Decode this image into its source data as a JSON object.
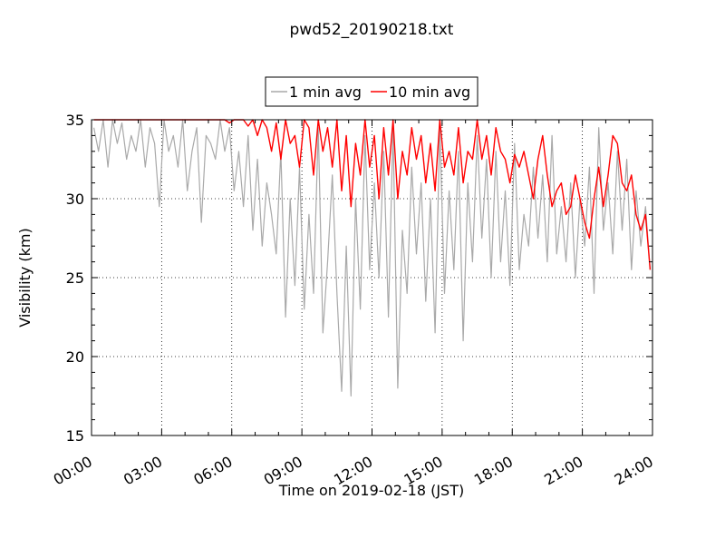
{
  "chart_data": {
    "type": "line",
    "title": "pwd52_20190218.txt",
    "xlabel": "Time on 2019-02-18 (JST)",
    "ylabel": "Visibility (km)",
    "xlim_hours": [
      0,
      24
    ],
    "ylim": [
      15,
      35
    ],
    "x_ticks": [
      "00:00",
      "03:00",
      "06:00",
      "09:00",
      "12:00",
      "15:00",
      "18:00",
      "21:00",
      "24:00"
    ],
    "y_ticks": [
      15,
      20,
      25,
      30,
      35
    ],
    "grid": true,
    "legend_position": "top-center",
    "series": [
      {
        "name": "1 min avg",
        "color": "#a9a9a9",
        "x_hours": [
          0.1,
          0.3,
          0.5,
          0.7,
          0.9,
          1.1,
          1.3,
          1.5,
          1.7,
          1.9,
          2.1,
          2.3,
          2.5,
          2.7,
          2.9,
          3.1,
          3.3,
          3.5,
          3.7,
          3.9,
          4.1,
          4.3,
          4.5,
          4.7,
          4.9,
          5.1,
          5.3,
          5.5,
          5.7,
          5.9,
          6.1,
          6.3,
          6.5,
          6.7,
          6.9,
          7.1,
          7.3,
          7.5,
          7.7,
          7.9,
          8.1,
          8.3,
          8.5,
          8.7,
          8.9,
          9.1,
          9.3,
          9.5,
          9.7,
          9.9,
          10.1,
          10.3,
          10.5,
          10.7,
          10.9,
          11.1,
          11.3,
          11.5,
          11.7,
          11.9,
          12.1,
          12.3,
          12.5,
          12.7,
          12.9,
          13.1,
          13.3,
          13.5,
          13.7,
          13.9,
          14.1,
          14.3,
          14.5,
          14.7,
          14.9,
          15.1,
          15.3,
          15.5,
          15.7,
          15.9,
          16.1,
          16.3,
          16.5,
          16.7,
          16.9,
          17.1,
          17.3,
          17.5,
          17.7,
          17.9,
          18.1,
          18.3,
          18.5,
          18.7,
          18.9,
          19.1,
          19.3,
          19.5,
          19.7,
          19.9,
          20.1,
          20.3,
          20.5,
          20.7,
          20.9,
          21.1,
          21.3,
          21.5,
          21.7,
          21.9,
          22.1,
          22.3,
          22.5,
          22.7,
          22.9,
          23.1,
          23.3,
          23.5,
          23.7,
          23.9
        ],
        "values": [
          34.5,
          33.0,
          35.0,
          32.0,
          35.0,
          33.5,
          34.8,
          32.5,
          34.0,
          33.0,
          35.0,
          32.0,
          34.5,
          33.5,
          29.5,
          35.0,
          33.0,
          34.0,
          32.0,
          35.0,
          30.5,
          33.0,
          34.5,
          28.5,
          34.0,
          33.5,
          32.5,
          35.0,
          33.0,
          34.5,
          30.5,
          33.0,
          29.5,
          34.0,
          28.0,
          32.5,
          27.0,
          31.0,
          29.0,
          26.5,
          33.0,
          22.5,
          30.0,
          24.5,
          32.0,
          23.0,
          29.0,
          24.0,
          34.5,
          21.5,
          26.0,
          31.5,
          24.0,
          17.8,
          27.0,
          17.5,
          30.0,
          23.0,
          34.0,
          25.5,
          31.0,
          25.0,
          33.0,
          22.5,
          34.5,
          18.0,
          28.0,
          24.0,
          32.0,
          26.5,
          31.0,
          23.5,
          30.0,
          21.5,
          34.5,
          24.0,
          30.5,
          25.5,
          33.0,
          21.0,
          31.0,
          26.0,
          34.0,
          27.5,
          32.5,
          25.0,
          33.0,
          26.0,
          30.5,
          24.5,
          33.5,
          25.5,
          29.0,
          27.0,
          32.0,
          27.5,
          31.5,
          26.0,
          34.0,
          26.5,
          29.5,
          26.0,
          31.0,
          25.0,
          30.0,
          27.0,
          32.0,
          24.0,
          34.5,
          28.0,
          31.0,
          26.5,
          33.0,
          28.0,
          32.5,
          25.5,
          30.5,
          27.0,
          29.5,
          25.5
        ]
      },
      {
        "name": "10 min avg",
        "color": "#ff0000",
        "x_hours": [
          0.1,
          0.3,
          0.5,
          0.7,
          0.9,
          1.1,
          1.3,
          1.5,
          1.7,
          1.9,
          2.1,
          2.3,
          2.5,
          2.7,
          2.9,
          3.1,
          3.3,
          3.5,
          3.7,
          3.9,
          4.1,
          4.3,
          4.5,
          4.7,
          4.9,
          5.1,
          5.3,
          5.5,
          5.7,
          5.9,
          6.1,
          6.3,
          6.5,
          6.7,
          6.9,
          7.1,
          7.3,
          7.5,
          7.7,
          7.9,
          8.1,
          8.3,
          8.5,
          8.7,
          8.9,
          9.1,
          9.3,
          9.5,
          9.7,
          9.9,
          10.1,
          10.3,
          10.5,
          10.7,
          10.9,
          11.1,
          11.3,
          11.5,
          11.7,
          11.9,
          12.1,
          12.3,
          12.5,
          12.7,
          12.9,
          13.1,
          13.3,
          13.5,
          13.7,
          13.9,
          14.1,
          14.3,
          14.5,
          14.7,
          14.9,
          15.1,
          15.3,
          15.5,
          15.7,
          15.9,
          16.1,
          16.3,
          16.5,
          16.7,
          16.9,
          17.1,
          17.3,
          17.5,
          17.7,
          17.9,
          18.1,
          18.3,
          18.5,
          18.7,
          18.9,
          19.1,
          19.3,
          19.5,
          19.7,
          19.9,
          20.1,
          20.3,
          20.5,
          20.7,
          20.9,
          21.1,
          21.3,
          21.5,
          21.7,
          21.9,
          22.1,
          22.3,
          22.5,
          22.7,
          22.9,
          23.1,
          23.3,
          23.5,
          23.7,
          23.9
        ],
        "values": [
          35.0,
          35.0,
          35.0,
          35.0,
          35.0,
          35.0,
          35.0,
          35.0,
          35.0,
          35.0,
          35.0,
          35.0,
          35.0,
          35.0,
          35.0,
          35.0,
          35.0,
          35.0,
          35.0,
          35.0,
          35.0,
          35.0,
          35.0,
          35.0,
          35.0,
          35.0,
          35.0,
          35.0,
          35.0,
          34.8,
          35.0,
          35.0,
          35.0,
          34.6,
          35.0,
          34.0,
          35.0,
          34.5,
          33.0,
          34.8,
          32.5,
          35.0,
          33.5,
          34.0,
          32.0,
          35.0,
          34.5,
          31.5,
          35.0,
          33.0,
          34.5,
          32.0,
          35.0,
          30.5,
          34.0,
          29.5,
          33.5,
          31.5,
          35.0,
          32.0,
          34.0,
          30.0,
          34.5,
          31.5,
          35.0,
          30.0,
          33.0,
          31.5,
          34.5,
          32.5,
          34.0,
          31.0,
          33.5,
          30.5,
          35.0,
          32.0,
          33.0,
          31.5,
          34.5,
          31.0,
          33.0,
          32.5,
          35.0,
          32.5,
          34.0,
          31.5,
          34.5,
          33.0,
          32.5,
          31.0,
          32.8,
          32.0,
          33.0,
          31.5,
          30.0,
          32.5,
          34.0,
          31.5,
          29.5,
          30.5,
          31.0,
          29.0,
          29.5,
          31.5,
          30.0,
          28.5,
          27.5,
          30.0,
          32.0,
          29.5,
          31.5,
          34.0,
          33.5,
          31.0,
          30.5,
          31.5,
          29.0,
          28.0,
          29.0,
          25.5
        ]
      }
    ]
  }
}
